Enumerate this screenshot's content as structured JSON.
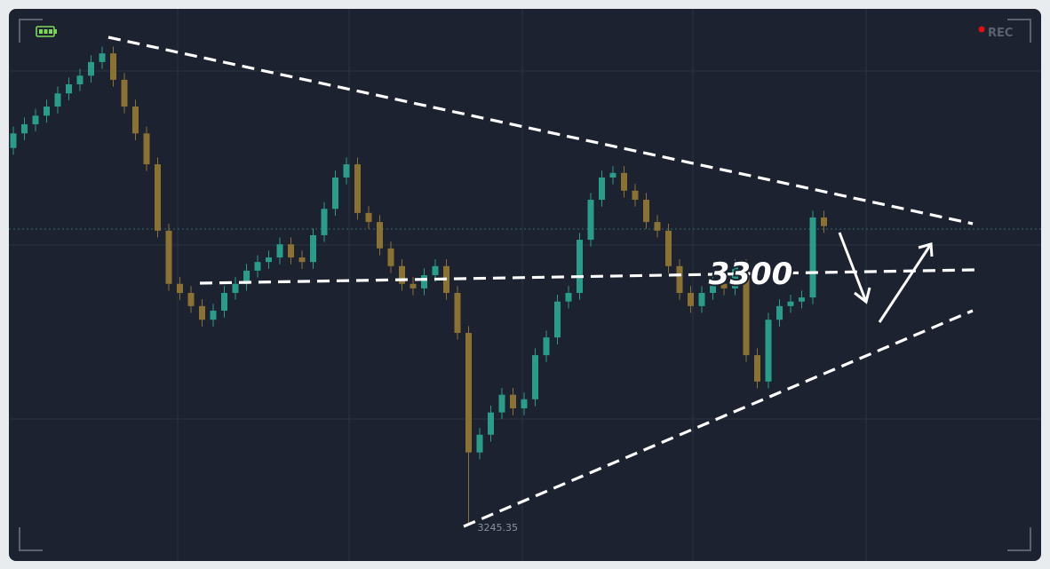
{
  "overlay": {
    "rec": "REC"
  },
  "chart_data": {
    "type": "candlestick",
    "annotation": "3300",
    "up_color": "#2a9d8a",
    "down_color": "#8c7232",
    "ylim": [
      3237.5,
      3358.6
    ],
    "open": [
      3328.0,
      3331.2,
      3333.2,
      3335.1,
      3337.1,
      3340.0,
      3342.0,
      3343.9,
      3346.9,
      3348.8,
      3343.0,
      3337.1,
      3331.2,
      3324.4,
      3309.8,
      3298.1,
      3296.1,
      3293.2,
      3290.2,
      3292.2,
      3296.1,
      3298.1,
      3301.0,
      3302.9,
      3303.9,
      3306.8,
      3303.9,
      3302.9,
      3308.8,
      3314.6,
      3321.5,
      3324.4,
      3313.7,
      3311.7,
      3305.9,
      3302.0,
      3298.1,
      3297.1,
      3300.0,
      3302.0,
      3296.1,
      3287.3,
      3261.0,
      3264.9,
      3269.8,
      3273.7,
      3270.7,
      3272.7,
      3282.4,
      3286.3,
      3294.2,
      3296.1,
      3307.8,
      3316.6,
      3321.5,
      3322.5,
      3318.6,
      3316.6,
      3311.7,
      3309.8,
      3302.0,
      3296.1,
      3293.2,
      3296.1,
      3298.1,
      3297.1,
      3302.0,
      3282.4,
      3276.6,
      3290.2,
      3293.2,
      3294.2,
      3295.1,
      3312.7
    ],
    "high": [
      3332.7,
      3334.7,
      3336.6,
      3338.6,
      3341.5,
      3343.5,
      3345.4,
      3348.4,
      3350.3,
      3350.3,
      3344.5,
      3338.6,
      3332.7,
      3325.9,
      3311.3,
      3299.6,
      3297.6,
      3294.7,
      3293.7,
      3297.6,
      3299.6,
      3302.5,
      3304.4,
      3305.4,
      3308.3,
      3308.3,
      3305.4,
      3310.3,
      3316.1,
      3323.0,
      3325.9,
      3325.9,
      3315.2,
      3313.2,
      3307.4,
      3303.5,
      3299.6,
      3301.5,
      3303.5,
      3303.5,
      3297.6,
      3288.8,
      3266.4,
      3271.3,
      3275.2,
      3275.2,
      3274.2,
      3283.9,
      3287.8,
      3295.7,
      3297.6,
      3309.3,
      3318.1,
      3323.0,
      3324.0,
      3324.0,
      3320.1,
      3318.1,
      3313.2,
      3311.3,
      3303.5,
      3297.6,
      3297.6,
      3299.6,
      3299.6,
      3303.5,
      3303.5,
      3283.9,
      3291.7,
      3294.7,
      3295.7,
      3296.6,
      3314.2,
      3314.2
    ],
    "low": [
      3326.5,
      3329.7,
      3331.7,
      3333.6,
      3335.6,
      3338.5,
      3340.5,
      3342.4,
      3345.4,
      3341.5,
      3335.6,
      3329.7,
      3322.9,
      3308.3,
      3296.6,
      3294.6,
      3291.7,
      3288.7,
      3288.7,
      3290.7,
      3294.6,
      3296.6,
      3299.5,
      3301.4,
      3302.4,
      3302.4,
      3301.4,
      3301.4,
      3307.3,
      3313.1,
      3320.0,
      3312.2,
      3310.2,
      3304.4,
      3300.5,
      3296.6,
      3295.6,
      3295.6,
      3298.5,
      3294.6,
      3285.8,
      3245.35,
      3259.5,
      3263.4,
      3268.3,
      3269.2,
      3269.2,
      3271.2,
      3280.9,
      3284.8,
      3292.7,
      3294.6,
      3306.3,
      3315.1,
      3320.0,
      3317.1,
      3315.1,
      3310.2,
      3308.3,
      3300.5,
      3294.6,
      3291.7,
      3291.7,
      3294.6,
      3295.6,
      3295.6,
      3280.9,
      3275.1,
      3275.1,
      3288.7,
      3291.7,
      3292.7,
      3293.6,
      3309.3
    ],
    "close": [
      3331.2,
      3333.2,
      3335.1,
      3337.1,
      3340.0,
      3342.0,
      3343.9,
      3346.9,
      3348.8,
      3343.0,
      3337.1,
      3331.2,
      3324.4,
      3309.8,
      3298.1,
      3296.1,
      3293.2,
      3290.2,
      3292.2,
      3296.1,
      3298.1,
      3301.0,
      3302.9,
      3303.9,
      3306.8,
      3303.9,
      3302.9,
      3308.8,
      3314.6,
      3321.5,
      3324.4,
      3313.7,
      3311.7,
      3305.9,
      3302.0,
      3298.1,
      3297.1,
      3300.0,
      3302.0,
      3296.1,
      3287.3,
      3261.0,
      3264.9,
      3269.8,
      3273.7,
      3270.7,
      3272.7,
      3282.4,
      3286.3,
      3294.2,
      3296.1,
      3307.8,
      3316.6,
      3321.5,
      3322.5,
      3318.6,
      3316.6,
      3311.7,
      3309.8,
      3302.0,
      3296.1,
      3293.2,
      3296.1,
      3298.1,
      3297.1,
      3302.0,
      3282.4,
      3276.6,
      3290.2,
      3293.2,
      3294.2,
      3295.1,
      3312.7,
      3310.8
    ]
  }
}
